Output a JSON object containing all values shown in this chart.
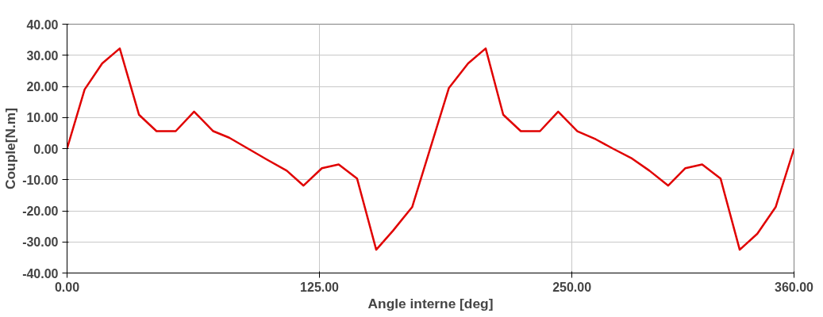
{
  "chart_data": {
    "type": "line",
    "xlabel": "Angle interne [deg]",
    "ylabel": "Couple[N.m]",
    "x": [
      0,
      8.7,
      17.4,
      26.1,
      35.6,
      44.3,
      53.8,
      62.9,
      72.4,
      80.3,
      89.6,
      98.9,
      108.8,
      117.1,
      126.2,
      134.5,
      143.6,
      153.1,
      161.4,
      170.9,
      189.1,
      198.6,
      207.3,
      216.0,
      224.7,
      234.2,
      243.2,
      252.7,
      261.8,
      270.3,
      279.3,
      288.4,
      297.7,
      306.2,
      314.5,
      323.6,
      333.1,
      341.8,
      350.9,
      360
    ],
    "series": [
      {
        "color": "#e00000",
        "values": [
          0,
          19,
          27.4,
          32.2,
          10.9,
          5.6,
          5.6,
          11.9,
          5.6,
          3.5,
          0,
          -3.5,
          -7.1,
          -11.9,
          -6.3,
          -5.1,
          -9.6,
          -32.5,
          -26.4,
          -18.8,
          19.5,
          27.4,
          32.2,
          10.9,
          5.6,
          5.6,
          11.9,
          5.6,
          3.0,
          0,
          -3.0,
          -7.1,
          -11.9,
          -6.3,
          -5.1,
          -9.6,
          -32.5,
          -27.4,
          -18.8,
          0
        ]
      }
    ],
    "xlim": [
      0,
      360
    ],
    "ylim": [
      -40,
      40
    ],
    "xticks": [
      {
        "value": 0,
        "label": "0.00"
      },
      {
        "value": 125,
        "label": "125.00"
      },
      {
        "value": 250,
        "label": "250.00"
      },
      {
        "value": 360,
        "label": "360.00"
      }
    ],
    "yticks": [
      {
        "value": -40,
        "label": "-40.00"
      },
      {
        "value": -30,
        "label": "-30.00"
      },
      {
        "value": -20,
        "label": "-20.00"
      },
      {
        "value": -10,
        "label": "-10.00"
      },
      {
        "value": 0,
        "label": "0.00"
      },
      {
        "value": 10,
        "label": "10.00"
      },
      {
        "value": 20,
        "label": "20.00"
      },
      {
        "value": 30,
        "label": "30.00"
      },
      {
        "value": 40,
        "label": "40.00"
      }
    ],
    "grid": true,
    "line_style": "solid",
    "marker": "none"
  }
}
